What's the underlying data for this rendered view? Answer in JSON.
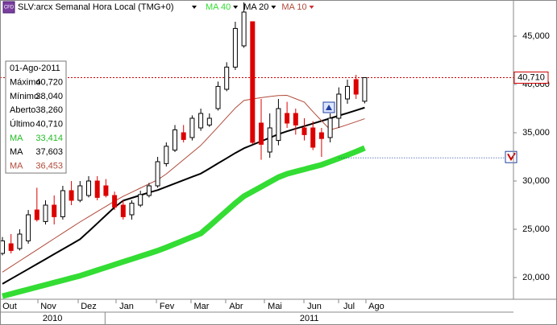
{
  "chart_data": {
    "type": "candlestick",
    "title": "SLV:arcx Semanal Hora Local (TMG+0)",
    "up_color": "#ffffff",
    "down_color": "#dd0000",
    "open": [
      22500,
      23500,
      23000,
      23800,
      27000,
      25800,
      27500,
      26300,
      29000,
      28000,
      28500,
      30000,
      29500,
      28500,
      27500,
      26500,
      27500,
      28500,
      29500,
      31800,
      33200,
      35000,
      34500,
      35500,
      35800,
      37500,
      39500,
      41800,
      44000,
      46500,
      36000,
      33000,
      34200,
      37000,
      37000,
      35500,
      35500,
      35000,
      34500,
      36500,
      38500,
      40500,
      38260
    ],
    "high": [
      24200,
      24500,
      25000,
      27000,
      29300,
      28000,
      28500,
      29500,
      30000,
      30000,
      30500,
      30500,
      30200,
      28900,
      28000,
      28000,
      29000,
      29800,
      32500,
      34000,
      35800,
      35800,
      36800,
      37500,
      37000,
      40300,
      42300,
      46500,
      48500,
      46500,
      38500,
      37000,
      38500,
      38200,
      37500,
      36500,
      36200,
      35500,
      37000,
      39700,
      40500,
      41000,
      40720
    ],
    "low": [
      22300,
      22500,
      22800,
      23500,
      25800,
      25500,
      25500,
      26000,
      27500,
      27800,
      28300,
      28000,
      28300,
      27000,
      26000,
      26000,
      27300,
      28300,
      29300,
      31500,
      33000,
      34000,
      34200,
      35200,
      35600,
      37300,
      39300,
      41500,
      43800,
      33800,
      32200,
      32400,
      33700,
      35500,
      34800,
      34200,
      33200,
      32500,
      34000,
      35500,
      38000,
      38500,
      38040
    ],
    "close": [
      23800,
      22800,
      24500,
      26500,
      26000,
      27500,
      26300,
      29000,
      28000,
      29500,
      30000,
      28300,
      28500,
      27300,
      26300,
      27700,
      28600,
      29500,
      32000,
      33600,
      35300,
      34300,
      36500,
      37000,
      36500,
      39800,
      41800,
      45800,
      47500,
      34000,
      33800,
      35500,
      37500,
      36000,
      35800,
      34800,
      33500,
      34400,
      36500,
      39000,
      39800,
      39000,
      40710
    ],
    "series": [
      {
        "name": "MA 40",
        "color": "#33dd33",
        "values": [
          18070,
          18300,
          18540,
          18770,
          19010,
          19240,
          19480,
          19710,
          19950,
          20180,
          20470,
          20760,
          21050,
          21340,
          21630,
          21910,
          22200,
          22490,
          22780,
          23120,
          23480,
          23840,
          24210,
          24570,
          25330,
          26120,
          26910,
          27700,
          28420,
          28910,
          29400,
          29900,
          30390,
          30740,
          30980,
          31210,
          31450,
          31680,
          32010,
          32350,
          32690,
          33040,
          33414
        ]
      },
      {
        "name": "MA 20",
        "color": "#000000",
        "values": [
          19340,
          19860,
          20370,
          20880,
          21400,
          21910,
          22430,
          22940,
          23450,
          23970,
          24780,
          25610,
          26450,
          27280,
          27970,
          28250,
          28530,
          28810,
          29060,
          29400,
          29740,
          30090,
          30430,
          30770,
          31290,
          31830,
          32360,
          32900,
          33390,
          33750,
          34120,
          34480,
          34850,
          35150,
          35420,
          35680,
          35950,
          36220,
          36490,
          36770,
          37040,
          37320,
          37603
        ]
      },
      {
        "name": "MA 10",
        "color": "#b04a3a",
        "values": [
          20560,
          21140,
          21720,
          22300,
          22870,
          23450,
          24030,
          24610,
          25180,
          25760,
          26300,
          26840,
          27370,
          27910,
          28410,
          28840,
          29270,
          29700,
          30120,
          30730,
          31470,
          32210,
          32950,
          33690,
          34640,
          35610,
          36590,
          37560,
          38340,
          38500,
          38640,
          38750,
          38850,
          38870,
          38520,
          38170,
          37180,
          36240,
          35300,
          35540,
          35840,
          36140,
          36453
        ]
      }
    ],
    "ylim": [
      17750,
      48750
    ],
    "yticks": [
      {
        "value": 20000,
        "label": "20,000"
      },
      {
        "value": 25000,
        "label": "25,000"
      },
      {
        "value": 30000,
        "label": "30,000"
      },
      {
        "value": 35000,
        "label": "35,000"
      },
      {
        "value": 40000,
        "label": "40,000"
      },
      {
        "value": 45000,
        "label": "45,000"
      }
    ],
    "xlim": [
      -0.28,
      59.25
    ],
    "xticks": [
      {
        "value": 0.84,
        "label": "Out"
      },
      {
        "value": 5.33,
        "label": "Nov"
      },
      {
        "value": 10.0,
        "label": "Dez"
      },
      {
        "value": 14.39,
        "label": "Jan"
      },
      {
        "value": 19.07,
        "label": "Fev"
      },
      {
        "value": 23.08,
        "label": "Mar"
      },
      {
        "value": 27.1,
        "label": "Abr"
      },
      {
        "value": 31.59,
        "label": "Mai"
      },
      {
        "value": 36.17,
        "label": "Jun"
      },
      {
        "value": 40.19,
        "label": "Jul"
      },
      {
        "value": 43.36,
        "label": "Ago"
      }
    ],
    "year_break": 11.9,
    "years": [
      "2010",
      "2011"
    ],
    "last_price": {
      "value": 40710,
      "label": "40,710"
    },
    "alert_level": 32400,
    "info_box": {
      "date": "01-Ago-2011",
      "rows": [
        [
          "Máximo",
          "40,720"
        ],
        [
          "Mínimo",
          "38,040"
        ],
        [
          "Aberto",
          "38,260"
        ],
        [
          "Último",
          "40,710"
        ],
        [
          "MA",
          "33,414"
        ],
        [
          "MA",
          "37,603"
        ],
        [
          "MA",
          "36,453"
        ]
      ],
      "row_colors": [
        "#000000",
        "#000000",
        "#000000",
        "#000000",
        "#22bb22",
        "#000000",
        "#b04a3a"
      ]
    }
  }
}
